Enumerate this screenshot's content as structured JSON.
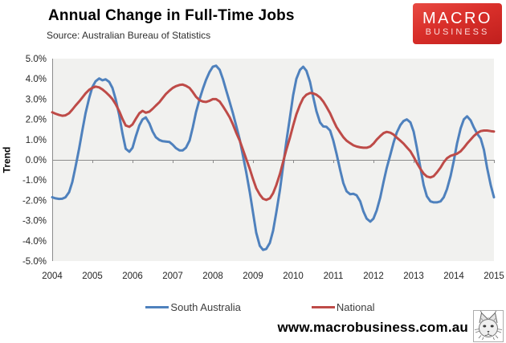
{
  "header": {
    "title": "Annual Change in Full-Time Jobs",
    "source": "Source: Australian Bureau of Statistics"
  },
  "logo": {
    "line1": "MACRO",
    "line2": "BUSINESS",
    "bg_color": "#d1201f",
    "text_color": "#ffffff"
  },
  "footer": {
    "website": "www.macrobusiness.com.au",
    "icon": "lynx-sketch"
  },
  "chart_data": {
    "type": "line",
    "title": "Annual Change in Full-Time Jobs",
    "subtitle": "Source: Australian Bureau of Statistics",
    "xlabel": "",
    "ylabel": "Trend",
    "ylim": [
      -5,
      5
    ],
    "xlim": [
      2004,
      2015
    ],
    "y_ticks": [
      "5.0%",
      "4.0%",
      "3.0%",
      "2.0%",
      "1.0%",
      "0.0%",
      "-1.0%",
      "-2.0%",
      "-3.0%",
      "-4.0%",
      "-5.0%"
    ],
    "x_ticks": [
      "2004",
      "2005",
      "2006",
      "2007",
      "2008",
      "2009",
      "2010",
      "2011",
      "2012",
      "2013",
      "2014",
      "2015"
    ],
    "grid": false,
    "plot_bg": "#f1f1ef",
    "axis_color": "#8c8c8c",
    "legend_position": "bottom",
    "series": [
      {
        "name": "South Australia",
        "color": "#4F81BD",
        "unit": "percent",
        "points": [
          [
            2004.0,
            -1.85
          ],
          [
            2004.08,
            -1.9
          ],
          [
            2004.17,
            -1.93
          ],
          [
            2004.25,
            -1.92
          ],
          [
            2004.33,
            -1.85
          ],
          [
            2004.42,
            -1.6
          ],
          [
            2004.5,
            -1.1
          ],
          [
            2004.58,
            -0.35
          ],
          [
            2004.67,
            0.55
          ],
          [
            2004.75,
            1.45
          ],
          [
            2004.83,
            2.3
          ],
          [
            2004.92,
            3.05
          ],
          [
            2005.0,
            3.6
          ],
          [
            2005.08,
            3.88
          ],
          [
            2005.17,
            4.02
          ],
          [
            2005.25,
            3.93
          ],
          [
            2005.33,
            3.98
          ],
          [
            2005.42,
            3.85
          ],
          [
            2005.5,
            3.55
          ],
          [
            2005.58,
            3.0
          ],
          [
            2005.67,
            2.2
          ],
          [
            2005.75,
            1.3
          ],
          [
            2005.83,
            0.55
          ],
          [
            2005.92,
            0.4
          ],
          [
            2006.0,
            0.6
          ],
          [
            2006.08,
            1.15
          ],
          [
            2006.17,
            1.7
          ],
          [
            2006.25,
            2.0
          ],
          [
            2006.33,
            2.1
          ],
          [
            2006.42,
            1.8
          ],
          [
            2006.5,
            1.4
          ],
          [
            2006.58,
            1.12
          ],
          [
            2006.67,
            0.98
          ],
          [
            2006.75,
            0.92
          ],
          [
            2006.83,
            0.9
          ],
          [
            2006.92,
            0.88
          ],
          [
            2007.0,
            0.75
          ],
          [
            2007.08,
            0.58
          ],
          [
            2007.17,
            0.47
          ],
          [
            2007.25,
            0.47
          ],
          [
            2007.33,
            0.6
          ],
          [
            2007.42,
            0.95
          ],
          [
            2007.5,
            1.6
          ],
          [
            2007.58,
            2.35
          ],
          [
            2007.67,
            3.0
          ],
          [
            2007.75,
            3.5
          ],
          [
            2007.83,
            3.95
          ],
          [
            2007.92,
            4.35
          ],
          [
            2008.0,
            4.6
          ],
          [
            2008.08,
            4.65
          ],
          [
            2008.17,
            4.45
          ],
          [
            2008.25,
            4.0
          ],
          [
            2008.33,
            3.45
          ],
          [
            2008.42,
            2.85
          ],
          [
            2008.5,
            2.3
          ],
          [
            2008.58,
            1.7
          ],
          [
            2008.67,
            1.0
          ],
          [
            2008.75,
            0.2
          ],
          [
            2008.83,
            -0.6
          ],
          [
            2008.92,
            -1.6
          ],
          [
            2009.0,
            -2.6
          ],
          [
            2009.08,
            -3.6
          ],
          [
            2009.17,
            -4.25
          ],
          [
            2009.25,
            -4.45
          ],
          [
            2009.33,
            -4.4
          ],
          [
            2009.42,
            -4.1
          ],
          [
            2009.5,
            -3.5
          ],
          [
            2009.58,
            -2.6
          ],
          [
            2009.67,
            -1.5
          ],
          [
            2009.75,
            -0.3
          ],
          [
            2009.83,
            0.9
          ],
          [
            2009.92,
            2.1
          ],
          [
            2010.0,
            3.2
          ],
          [
            2010.08,
            4.0
          ],
          [
            2010.17,
            4.45
          ],
          [
            2010.25,
            4.6
          ],
          [
            2010.33,
            4.4
          ],
          [
            2010.42,
            3.85
          ],
          [
            2010.5,
            3.1
          ],
          [
            2010.58,
            2.4
          ],
          [
            2010.67,
            1.85
          ],
          [
            2010.75,
            1.65
          ],
          [
            2010.83,
            1.63
          ],
          [
            2010.92,
            1.45
          ],
          [
            2011.0,
            0.95
          ],
          [
            2011.08,
            0.3
          ],
          [
            2011.17,
            -0.5
          ],
          [
            2011.25,
            -1.15
          ],
          [
            2011.33,
            -1.55
          ],
          [
            2011.42,
            -1.7
          ],
          [
            2011.5,
            -1.68
          ],
          [
            2011.58,
            -1.75
          ],
          [
            2011.67,
            -2.05
          ],
          [
            2011.75,
            -2.55
          ],
          [
            2011.83,
            -2.9
          ],
          [
            2011.92,
            -3.05
          ],
          [
            2012.0,
            -2.9
          ],
          [
            2012.08,
            -2.5
          ],
          [
            2012.17,
            -1.85
          ],
          [
            2012.25,
            -1.1
          ],
          [
            2012.33,
            -0.4
          ],
          [
            2012.42,
            0.25
          ],
          [
            2012.5,
            0.85
          ],
          [
            2012.58,
            1.35
          ],
          [
            2012.67,
            1.72
          ],
          [
            2012.75,
            1.92
          ],
          [
            2012.83,
            2.0
          ],
          [
            2012.92,
            1.85
          ],
          [
            2013.0,
            1.4
          ],
          [
            2013.08,
            0.6
          ],
          [
            2013.17,
            -0.4
          ],
          [
            2013.25,
            -1.25
          ],
          [
            2013.33,
            -1.8
          ],
          [
            2013.42,
            -2.05
          ],
          [
            2013.5,
            -2.1
          ],
          [
            2013.58,
            -2.1
          ],
          [
            2013.67,
            -2.05
          ],
          [
            2013.75,
            -1.85
          ],
          [
            2013.83,
            -1.45
          ],
          [
            2013.92,
            -0.8
          ],
          [
            2014.0,
            -0.05
          ],
          [
            2014.08,
            0.8
          ],
          [
            2014.17,
            1.55
          ],
          [
            2014.25,
            2.0
          ],
          [
            2014.33,
            2.15
          ],
          [
            2014.42,
            1.95
          ],
          [
            2014.5,
            1.6
          ],
          [
            2014.58,
            1.3
          ],
          [
            2014.67,
            1.05
          ],
          [
            2014.75,
            0.5
          ],
          [
            2014.83,
            -0.4
          ],
          [
            2014.92,
            -1.25
          ],
          [
            2015.0,
            -1.85
          ]
        ]
      },
      {
        "name": "National",
        "color": "#BE4B48",
        "unit": "percent",
        "points": [
          [
            2004.0,
            2.35
          ],
          [
            2004.08,
            2.28
          ],
          [
            2004.17,
            2.22
          ],
          [
            2004.25,
            2.18
          ],
          [
            2004.33,
            2.2
          ],
          [
            2004.42,
            2.3
          ],
          [
            2004.5,
            2.48
          ],
          [
            2004.58,
            2.68
          ],
          [
            2004.67,
            2.88
          ],
          [
            2004.75,
            3.08
          ],
          [
            2004.83,
            3.28
          ],
          [
            2004.92,
            3.46
          ],
          [
            2005.0,
            3.56
          ],
          [
            2005.08,
            3.62
          ],
          [
            2005.17,
            3.58
          ],
          [
            2005.25,
            3.48
          ],
          [
            2005.33,
            3.35
          ],
          [
            2005.42,
            3.18
          ],
          [
            2005.5,
            3.0
          ],
          [
            2005.58,
            2.75
          ],
          [
            2005.67,
            2.4
          ],
          [
            2005.75,
            2.02
          ],
          [
            2005.83,
            1.7
          ],
          [
            2005.92,
            1.63
          ],
          [
            2006.0,
            1.75
          ],
          [
            2006.08,
            2.02
          ],
          [
            2006.17,
            2.3
          ],
          [
            2006.25,
            2.42
          ],
          [
            2006.33,
            2.33
          ],
          [
            2006.42,
            2.38
          ],
          [
            2006.5,
            2.52
          ],
          [
            2006.58,
            2.68
          ],
          [
            2006.67,
            2.85
          ],
          [
            2006.75,
            3.05
          ],
          [
            2006.83,
            3.25
          ],
          [
            2006.92,
            3.42
          ],
          [
            2007.0,
            3.55
          ],
          [
            2007.08,
            3.64
          ],
          [
            2007.17,
            3.7
          ],
          [
            2007.25,
            3.72
          ],
          [
            2007.33,
            3.66
          ],
          [
            2007.42,
            3.55
          ],
          [
            2007.5,
            3.35
          ],
          [
            2007.58,
            3.12
          ],
          [
            2007.67,
            2.95
          ],
          [
            2007.75,
            2.88
          ],
          [
            2007.83,
            2.86
          ],
          [
            2007.92,
            2.92
          ],
          [
            2008.0,
            3.0
          ],
          [
            2008.08,
            3.0
          ],
          [
            2008.17,
            2.88
          ],
          [
            2008.25,
            2.65
          ],
          [
            2008.33,
            2.4
          ],
          [
            2008.42,
            2.1
          ],
          [
            2008.5,
            1.75
          ],
          [
            2008.58,
            1.35
          ],
          [
            2008.67,
            0.95
          ],
          [
            2008.75,
            0.5
          ],
          [
            2008.83,
            0.05
          ],
          [
            2008.92,
            -0.45
          ],
          [
            2009.0,
            -0.95
          ],
          [
            2009.08,
            -1.4
          ],
          [
            2009.17,
            -1.72
          ],
          [
            2009.25,
            -1.92
          ],
          [
            2009.33,
            -1.98
          ],
          [
            2009.42,
            -1.9
          ],
          [
            2009.5,
            -1.65
          ],
          [
            2009.58,
            -1.25
          ],
          [
            2009.67,
            -0.7
          ],
          [
            2009.75,
            -0.1
          ],
          [
            2009.83,
            0.5
          ],
          [
            2009.92,
            1.1
          ],
          [
            2010.0,
            1.7
          ],
          [
            2010.08,
            2.25
          ],
          [
            2010.17,
            2.72
          ],
          [
            2010.25,
            3.05
          ],
          [
            2010.33,
            3.22
          ],
          [
            2010.42,
            3.3
          ],
          [
            2010.5,
            3.28
          ],
          [
            2010.58,
            3.22
          ],
          [
            2010.67,
            3.08
          ],
          [
            2010.75,
            2.88
          ],
          [
            2010.83,
            2.62
          ],
          [
            2010.92,
            2.3
          ],
          [
            2011.0,
            1.95
          ],
          [
            2011.08,
            1.62
          ],
          [
            2011.17,
            1.35
          ],
          [
            2011.25,
            1.12
          ],
          [
            2011.33,
            0.95
          ],
          [
            2011.42,
            0.82
          ],
          [
            2011.5,
            0.72
          ],
          [
            2011.58,
            0.66
          ],
          [
            2011.67,
            0.62
          ],
          [
            2011.75,
            0.6
          ],
          [
            2011.83,
            0.6
          ],
          [
            2011.92,
            0.66
          ],
          [
            2012.0,
            0.8
          ],
          [
            2012.08,
            1.0
          ],
          [
            2012.17,
            1.18
          ],
          [
            2012.25,
            1.32
          ],
          [
            2012.33,
            1.38
          ],
          [
            2012.42,
            1.34
          ],
          [
            2012.5,
            1.25
          ],
          [
            2012.58,
            1.1
          ],
          [
            2012.67,
            0.95
          ],
          [
            2012.75,
            0.8
          ],
          [
            2012.83,
            0.62
          ],
          [
            2012.92,
            0.42
          ],
          [
            2013.0,
            0.15
          ],
          [
            2013.08,
            -0.15
          ],
          [
            2013.17,
            -0.45
          ],
          [
            2013.25,
            -0.68
          ],
          [
            2013.33,
            -0.82
          ],
          [
            2013.42,
            -0.87
          ],
          [
            2013.5,
            -0.8
          ],
          [
            2013.58,
            -0.62
          ],
          [
            2013.67,
            -0.38
          ],
          [
            2013.75,
            -0.12
          ],
          [
            2013.83,
            0.08
          ],
          [
            2013.92,
            0.2
          ],
          [
            2014.0,
            0.25
          ],
          [
            2014.08,
            0.3
          ],
          [
            2014.17,
            0.42
          ],
          [
            2014.25,
            0.6
          ],
          [
            2014.33,
            0.8
          ],
          [
            2014.42,
            1.0
          ],
          [
            2014.5,
            1.18
          ],
          [
            2014.58,
            1.32
          ],
          [
            2014.67,
            1.42
          ],
          [
            2014.75,
            1.45
          ],
          [
            2014.83,
            1.45
          ],
          [
            2014.92,
            1.42
          ],
          [
            2015.0,
            1.4
          ]
        ]
      }
    ]
  }
}
